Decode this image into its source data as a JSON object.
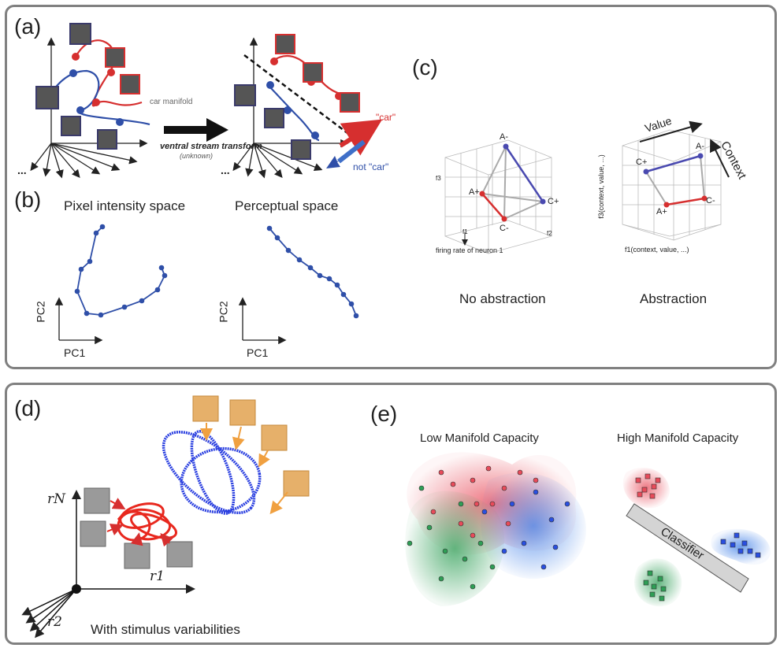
{
  "colors": {
    "red": "#d62f2f",
    "blue": "#2f4fa8",
    "gray": "#888888",
    "pink": "#e84b5a",
    "dark": "#222222"
  },
  "panel_a": {
    "label": "(a)",
    "manifold_label": "car manifold",
    "arrow_title": "ventral stream transform",
    "arrow_subtitle": "(unknown)",
    "car_label": "\"car\"",
    "not_car_label": "not \"car\"",
    "dots": "..."
  },
  "panel_b": {
    "label": "(b)",
    "left_title": "Pixel intensity space",
    "right_title": "Perceptual space",
    "xlabel": "PC1",
    "ylabel": "PC2"
  },
  "panel_c": {
    "label": "(c)",
    "left_caption": "No abstraction",
    "right_caption": "Abstraction",
    "left_points": [
      "A-",
      "A+",
      "C+",
      "C-"
    ],
    "right_points": [
      "A-",
      "C+",
      "A+",
      "C-"
    ],
    "f3": "f3",
    "f1": "f1",
    "f2": "f2",
    "neuron_label": "firing rate of neuron 1",
    "value_label": "Value",
    "context_label": "Context",
    "abs_f3": "f3(context, value, ...)",
    "abs_f1": "f1(context, value, ...)"
  },
  "panel_d": {
    "label": "(d)",
    "caption": "With stimulus variabilities",
    "rN": "rN",
    "r1": "r1",
    "r2": "r2"
  },
  "panel_e": {
    "label": "(e)",
    "left_title": "Low Manifold Capacity",
    "right_title": "High Manifold Capacity",
    "classifier": "Classifier"
  }
}
